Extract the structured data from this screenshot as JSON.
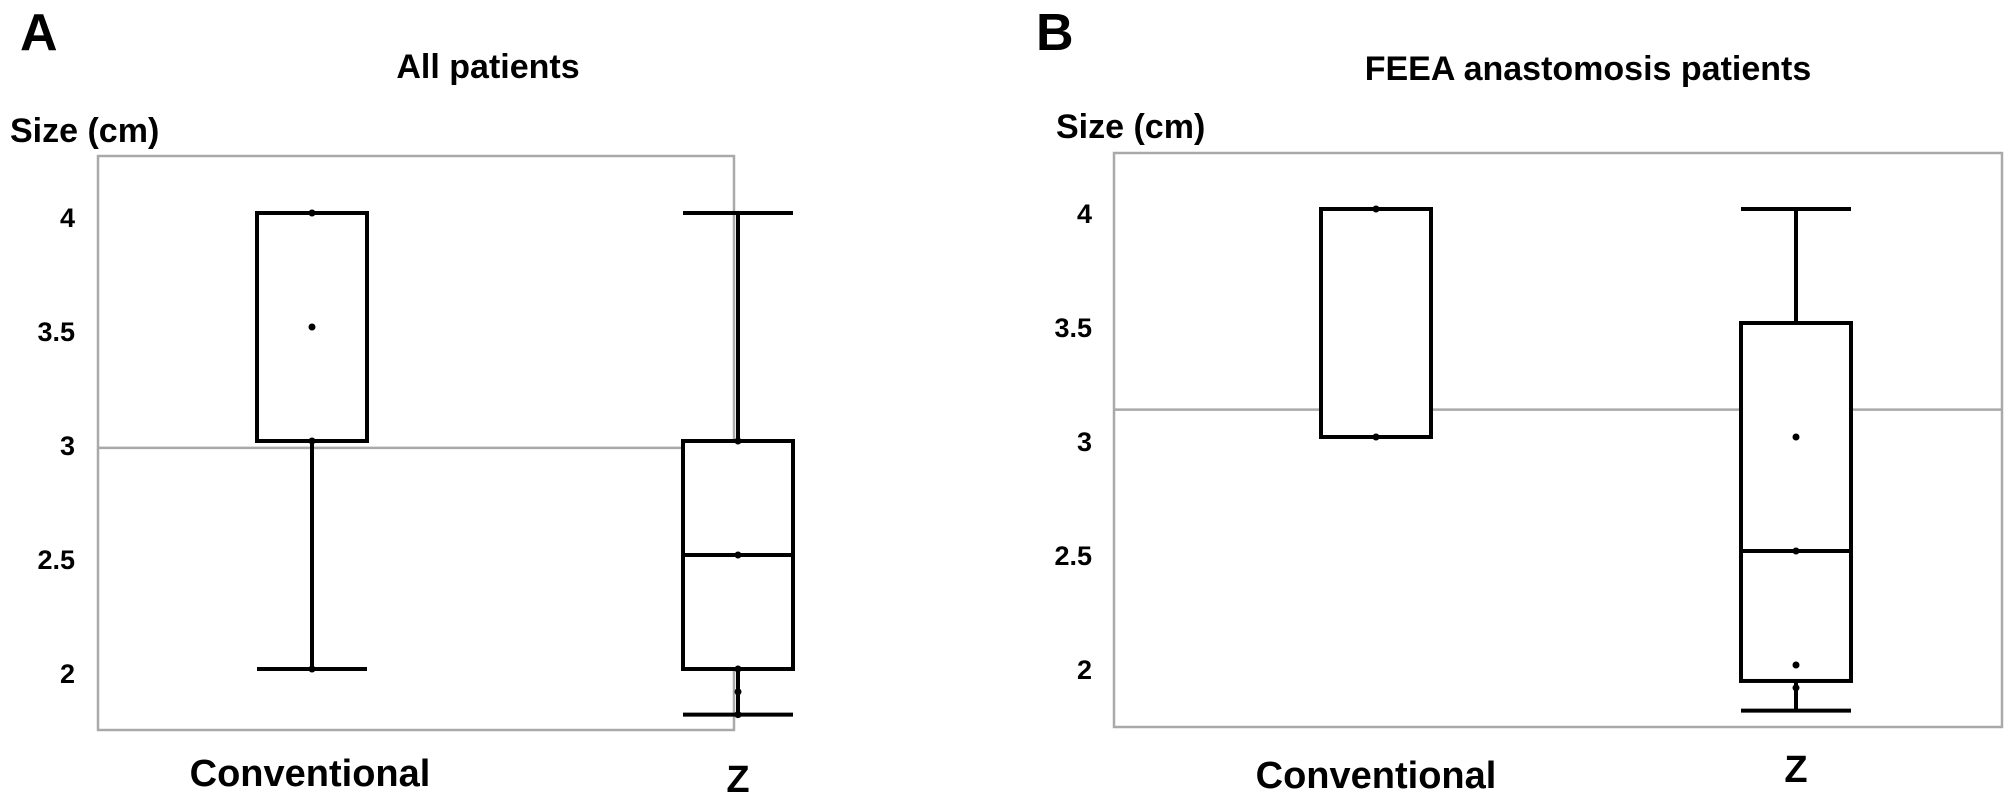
{
  "chart_data": [
    {
      "type": "box",
      "panel_label": "A",
      "title": "All patients",
      "ylabel": "Size (cm)",
      "xlabel": "",
      "ylim": [
        1.75,
        4.25
      ],
      "yticks": [
        "2",
        "2.5",
        "3",
        "3.5",
        "4"
      ],
      "grand_mean": 2.97,
      "categories": [
        "Conventional",
        "Z"
      ],
      "boxes": [
        {
          "category": "Conventional",
          "whisker_low": 2,
          "q1": 3,
          "median": 3,
          "q3": 4,
          "whisker_high": 4,
          "points": [
            4,
            3.5,
            3,
            2
          ]
        },
        {
          "category": "Z",
          "whisker_low": 1.8,
          "q1": 2,
          "median": 2.5,
          "q3": 3,
          "whisker_high": 4,
          "points": [
            3,
            2.5,
            2,
            1.9,
            1.8
          ]
        }
      ]
    },
    {
      "type": "box",
      "panel_label": "B",
      "title": "FEEA anastomosis patients",
      "ylabel": "Size (cm)",
      "xlabel": "",
      "ylim": [
        1.75,
        4.25
      ],
      "yticks": [
        "2",
        "2.5",
        "3",
        "3.5",
        "4"
      ],
      "grand_mean": 3.12,
      "categories": [
        "Conventional",
        "Z"
      ],
      "boxes": [
        {
          "category": "Conventional",
          "whisker_low": 3,
          "q1": 3,
          "median": 3,
          "q3": 4,
          "whisker_high": 4,
          "points": [
            4,
            3
          ]
        },
        {
          "category": "Z",
          "whisker_low": 1.8,
          "q1": 1.93,
          "median": 2.5,
          "q3": 3.5,
          "whisker_high": 4,
          "points": [
            3,
            2.5,
            2,
            1.9
          ]
        }
      ]
    }
  ]
}
